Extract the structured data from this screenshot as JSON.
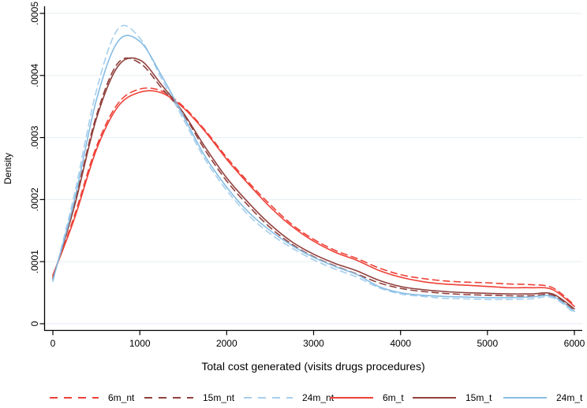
{
  "chart_data": {
    "type": "line",
    "title": "",
    "xlabel": "Total cost generated (visits drugs procedures)",
    "ylabel": "Density",
    "xlim": [
      0,
      6000
    ],
    "ylim": [
      0,
      0.0005
    ],
    "x_ticks": [
      0,
      1000,
      2000,
      3000,
      4000,
      5000,
      6000
    ],
    "x_tick_labels": [
      "0",
      "1000",
      "2000",
      "3000",
      "4000",
      "5000",
      "6000"
    ],
    "y_ticks": [
      0,
      0.0001,
      0.0002,
      0.0003,
      0.0004,
      0.0005
    ],
    "y_tick_labels": [
      "0",
      ".0001",
      ".0002",
      ".0003",
      ".0004",
      ".0005"
    ],
    "grid": "horizontal",
    "gridline_color": "#e4eef3",
    "axis_color": "#000000",
    "legend_position": "bottom",
    "x": [
      0,
      250,
      500,
      750,
      1000,
      1250,
      1500,
      1750,
      2000,
      2250,
      2500,
      2750,
      3000,
      3250,
      3500,
      3750,
      4000,
      4250,
      4500,
      4750,
      5000,
      5250,
      5500,
      5750,
      6000
    ],
    "series": [
      {
        "name": "6m_nt",
        "color": "#ee4137",
        "dash": true,
        "values": [
          7.6e-05,
          0.000175,
          0.000285,
          0.000355,
          0.000378,
          0.000375,
          0.00035,
          0.000312,
          0.000268,
          0.000228,
          0.000192,
          0.00016,
          0.000136,
          0.000118,
          0.000105,
          9e-05,
          7.9e-05,
          7.3e-05,
          6.9e-05,
          6.7e-05,
          6.6e-05,
          6.4e-05,
          6.3e-05,
          5.8e-05,
          3e-05
        ]
      },
      {
        "name": "15m_nt",
        "color": "#91413e",
        "dash": true,
        "values": [
          7.2e-05,
          0.000195,
          0.000335,
          0.00042,
          0.00042,
          0.00038,
          0.000338,
          0.00028,
          0.00023,
          0.00019,
          0.000155,
          0.000128,
          0.000108,
          9.3e-05,
          8e-05,
          6.6e-05,
          5.7e-05,
          5.2e-05,
          4.9e-05,
          4.7e-05,
          4.6e-05,
          4.5e-05,
          4.5e-05,
          4.6e-05,
          2.2e-05
        ]
      },
      {
        "name": "24m_nt",
        "color": "#a6cfee",
        "dash": true,
        "values": [
          6.8e-05,
          0.00021,
          0.000375,
          0.000475,
          0.00046,
          0.000395,
          0.00033,
          0.000265,
          0.000215,
          0.000175,
          0.000145,
          0.000122,
          0.000103,
          8.8e-05,
          7.5e-05,
          5.8e-05,
          4.8e-05,
          4.4e-05,
          4.1e-05,
          4e-05,
          3.9e-05,
          3.9e-05,
          4e-05,
          4.2e-05,
          1.7e-05
        ]
      },
      {
        "name": "6m_t",
        "color": "#ee4137",
        "dash": false,
        "values": [
          7.8e-05,
          0.00017,
          0.00028,
          0.00035,
          0.000373,
          0.000372,
          0.000348,
          0.00031,
          0.000265,
          0.000225,
          0.000188,
          0.000157,
          0.000133,
          0.000115,
          0.000102,
          8.6e-05,
          7.5e-05,
          6.8e-05,
          6.4e-05,
          6.2e-05,
          6e-05,
          5.8e-05,
          5.8e-05,
          5.5e-05,
          2.8e-05
        ]
      },
      {
        "name": "15m_t",
        "color": "#91413e",
        "dash": false,
        "values": [
          7.3e-05,
          0.00019,
          0.00033,
          0.000415,
          0.000425,
          0.000385,
          0.00034,
          0.000285,
          0.000235,
          0.000195,
          0.00016,
          0.000132,
          0.000112,
          9.7e-05,
          8.5e-05,
          7e-05,
          6e-05,
          5.5e-05,
          5.2e-05,
          5e-05,
          4.9e-05,
          4.8e-05,
          4.8e-05,
          4.8e-05,
          2.4e-05
        ]
      },
      {
        "name": "24m_t",
        "color": "#87bde4",
        "dash": false,
        "values": [
          7e-05,
          0.0002,
          0.00036,
          0.000455,
          0.000455,
          0.0004,
          0.000335,
          0.00027,
          0.00022,
          0.00018,
          0.00015,
          0.000126,
          0.000107,
          9.2e-05,
          7.9e-05,
          6e-05,
          5e-05,
          4.6e-05,
          4.4e-05,
          4.3e-05,
          4.2e-05,
          4.2e-05,
          4.3e-05,
          4.4e-05,
          2e-05
        ]
      }
    ],
    "legend": [
      "6m_nt",
      "15m_nt",
      "24m_nt",
      "6m_t",
      "15m_t",
      "24m_t"
    ]
  }
}
